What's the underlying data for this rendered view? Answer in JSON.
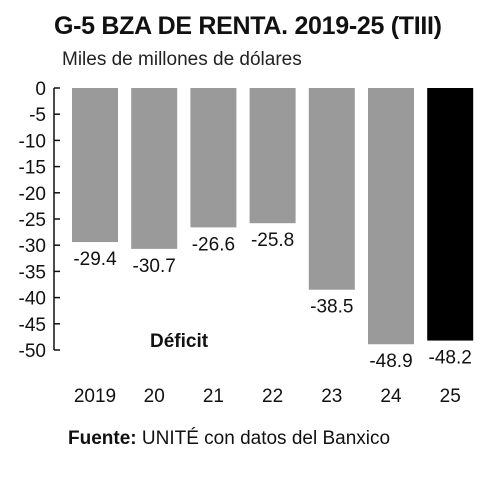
{
  "chart_data": {
    "type": "bar",
    "title": "G-5 BZA DE RENTA. 2019-25 (TIII)",
    "subtitle": "Miles de millones de dólares",
    "categories": [
      "2019",
      "20",
      "21",
      "22",
      "23",
      "24",
      "25"
    ],
    "values": [
      -29.4,
      -30.7,
      -26.6,
      -25.8,
      -38.5,
      -48.9,
      -48.2
    ],
    "value_labels": [
      "-29.4",
      "-30.7",
      "-26.6",
      "-25.8",
      "-38.5",
      "-48.9",
      "-48.2"
    ],
    "ylim": [
      -50,
      0
    ],
    "yticks": [
      0,
      -5,
      -10,
      -15,
      -20,
      -25,
      -30,
      -35,
      -40,
      -45,
      -50
    ],
    "ytick_labels": [
      "0",
      "-5",
      "-10",
      "-15",
      "-20",
      "-25",
      "-30",
      "-35",
      "-40",
      "-45",
      "-50"
    ],
    "annotation": "Déficit",
    "colors": {
      "bar": "#9a9a9b",
      "highlight": "#000000"
    },
    "highlight_index": 6,
    "grid": false
  },
  "source": {
    "label": "Fuente:",
    "text": " UNITÉ con datos del Banxico"
  }
}
